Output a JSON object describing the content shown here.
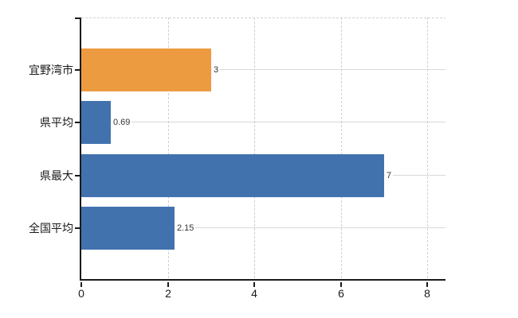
{
  "chart_data": {
    "type": "bar",
    "orientation": "horizontal",
    "title": "",
    "xlabel": "",
    "ylabel": "",
    "categories": [
      "宜野湾市",
      "県平均",
      "県最大",
      "全国平均"
    ],
    "values": [
      3,
      0.69,
      7,
      2.15
    ],
    "value_labels": [
      "3",
      "0.69",
      "7",
      "2.15"
    ],
    "bar_colors": [
      "#ED9B40",
      "#4272AE",
      "#4272AE",
      "#4272AE"
    ],
    "x_ticks": [
      0,
      2,
      4,
      6,
      8
    ],
    "x_tick_labels": [
      "0",
      "2",
      "4",
      "6",
      "8"
    ],
    "xlim": [
      0,
      8.42
    ],
    "legend": "none",
    "grid": {
      "vertical_style": "dashed",
      "horizontal_style": "solid",
      "top_border_style": "dashed"
    }
  },
  "colors": {
    "background": "#ffffff",
    "axis": "#1a1a1a",
    "grid_vertical": "#d0d0d0",
    "grid_horizontal": "#d8d8d8",
    "top_border": "#d0d0d0",
    "category_label": "#1a1a1a",
    "value_label": "#333333",
    "tick_label": "#1a1a1a"
  }
}
